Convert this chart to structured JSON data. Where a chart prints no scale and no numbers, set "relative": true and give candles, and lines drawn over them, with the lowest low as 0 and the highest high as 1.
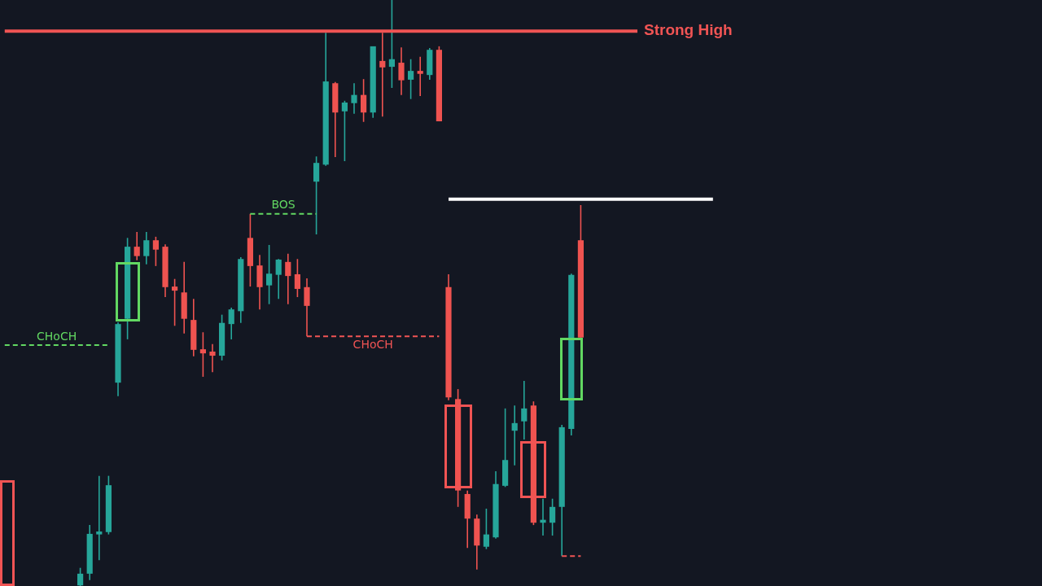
{
  "chart_data": {
    "type": "candlestick",
    "relative": true,
    "legend": false,
    "categories": [
      null,
      null,
      null,
      null,
      null,
      null,
      null,
      null,
      null,
      null,
      null,
      null,
      null,
      null,
      null,
      null,
      null,
      null,
      null,
      null,
      null,
      null,
      null,
      null,
      null,
      null,
      null,
      null,
      null,
      null,
      null,
      null,
      null,
      null,
      null,
      null,
      null,
      null,
      null,
      null,
      null,
      null,
      null,
      null,
      null,
      null,
      null,
      null,
      null,
      null,
      null,
      null,
      null,
      null,
      null,
      null,
      null,
      null,
      null,
      null,
      null,
      null,
      null,
      null,
      null,
      null,
      null,
      null,
      null,
      null,
      null,
      null,
      null,
      null,
      null,
      null,
      null,
      null,
      null,
      null
    ],
    "ohlc": [
      null,
      null,
      null,
      null,
      null,
      null,
      null,
      null,
      [
        0.001,
        0.031,
        0,
        0.021
      ],
      [
        0.021,
        0.104,
        0.01,
        0.089
      ],
      [
        0.088,
        0.188,
        0.044,
        0.093
      ],
      [
        0.092,
        0.188,
        0.088,
        0.172
      ],
      [
        0.347,
        0.45,
        0.324,
        0.447
      ],
      [
        0.456,
        0.594,
        0.421,
        0.579
      ],
      [
        0.579,
        0.604,
        0.556,
        0.563
      ],
      [
        0.563,
        0.604,
        0.549,
        0.59
      ],
      [
        0.59,
        0.596,
        0.546,
        0.574
      ],
      [
        0.579,
        0.583,
        0.493,
        0.51
      ],
      [
        0.511,
        0.524,
        0.444,
        0.504
      ],
      [
        0.501,
        0.553,
        0.431,
        0.456
      ],
      [
        0.454,
        0.49,
        0.392,
        0.403
      ],
      [
        0.404,
        0.433,
        0.357,
        0.397
      ],
      [
        0.4,
        0.413,
        0.365,
        0.393
      ],
      [
        0.393,
        0.463,
        0.385,
        0.449
      ],
      [
        0.447,
        0.475,
        0.421,
        0.472
      ],
      [
        0.469,
        0.561,
        0.449,
        0.558
      ],
      [
        0.594,
        0.635,
        0.511,
        0.546
      ],
      [
        0.547,
        0.565,
        0.472,
        0.51
      ],
      [
        0.513,
        0.582,
        0.481,
        0.533
      ],
      [
        0.531,
        0.558,
        0.49,
        0.557
      ],
      [
        0.553,
        0.567,
        0.481,
        0.529
      ],
      [
        0.532,
        0.558,
        0.493,
        0.507
      ],
      [
        0.51,
        0.525,
        0.426,
        0.478
      ],
      [
        0.69,
        0.733,
        0.6,
        0.722
      ],
      [
        0.719,
        0.944,
        0.717,
        0.861
      ],
      [
        0.858,
        0.86,
        0.732,
        0.808
      ],
      [
        0.81,
        0.828,
        0.725,
        0.825
      ],
      [
        0.824,
        0.858,
        0.806,
        0.838
      ],
      [
        0.838,
        0.865,
        0.792,
        0.808
      ],
      [
        0.808,
        0.921,
        0.799,
        0.921
      ],
      [
        0.896,
        0.944,
        0.801,
        0.885
      ],
      [
        0.886,
        1,
        0.85,
        0.899
      ],
      [
        0.893,
        0.919,
        0.838,
        0.863
      ],
      [
        0.864,
        0.899,
        0.831,
        0.879
      ],
      [
        0.879,
        0.903,
        0.836,
        0.874
      ],
      [
        0.872,
        0.918,
        0.864,
        0.915
      ],
      [
        0.915,
        0.921,
        0.793,
        0.793
      ],
      [
        0.51,
        0.532,
        0.317,
        0.322
      ],
      [
        0.319,
        0.336,
        0.135,
        0.163
      ],
      [
        0.157,
        0.163,
        0.065,
        0.115
      ],
      [
        0.115,
        0.122,
        0.028,
        0.069
      ],
      [
        0.067,
        0.132,
        0.063,
        0.088
      ],
      [
        0.083,
        0.196,
        0.081,
        0.174
      ],
      [
        0.171,
        0.303,
        0.169,
        0.215
      ],
      [
        0.265,
        0.308,
        0.206,
        0.278
      ],
      [
        0.281,
        0.35,
        0.25,
        0.303
      ],
      [
        0.308,
        0.315,
        0.104,
        0.108
      ],
      [
        0.108,
        0.149,
        0.086,
        0.113
      ],
      [
        0.108,
        0.149,
        0.086,
        0.135
      ],
      [
        0.135,
        0.275,
        0.051,
        0.271
      ],
      [
        0.268,
        0.533,
        0.257,
        0.531
      ],
      [
        0.59,
        0.65,
        0.424,
        0.424
      ],
      null,
      null,
      null,
      null,
      null,
      null,
      null,
      null,
      null,
      null,
      null,
      null,
      null,
      null,
      null,
      null,
      null,
      null
    ],
    "colors": [
      null,
      null,
      null,
      null,
      null,
      null,
      null,
      null,
      "#26a69a",
      "#26a69a",
      "#26a69a",
      "#26a69a",
      "#26a69a",
      "#26a69a",
      "#ef5350",
      "#26a69a",
      "#ef5350",
      "#ef5350",
      "#ef5350",
      "#ef5350",
      "#ef5350",
      "#ef5350",
      "#ef5350",
      "#26a69a",
      "#26a69a",
      "#26a69a",
      "#ef5350",
      "#ef5350",
      "#26a69a",
      "#26a69a",
      "#ef5350",
      "#ef5350",
      "#ef5350",
      "#26a69a",
      "#26a69a",
      "#ef5350",
      "#26a69a",
      "#26a69a",
      "#ef5350",
      "#26a69a",
      "#ef5350",
      "#26a69a",
      "#ef5350",
      "#26a69a",
      "#ef5350",
      "#26a69a",
      "#ef5350",
      "#ef5350",
      "#ef5350",
      "#ef5350",
      "#ef5350",
      "#26a69a",
      "#26a69a",
      "#26a69a",
      "#26a69a",
      "#26a69a",
      "#ef5350",
      "#26a69a",
      "#26a69a",
      "#26a69a",
      "#26a69a",
      "#ef5350",
      null,
      null,
      null,
      null,
      null,
      null,
      null,
      null,
      null,
      null,
      null,
      null,
      null,
      null,
      null,
      null,
      null,
      null
    ],
    "series": [
      {
        "type": "line",
        "name": "Strong High",
        "color": "#f05454",
        "line_style": "solid",
        "values": [
          0.947,
          null,
          null,
          null,
          null,
          null,
          null,
          null,
          null,
          null,
          null,
          null,
          null,
          null,
          null,
          null,
          null,
          null,
          null,
          null,
          null,
          null,
          null,
          null,
          null,
          null,
          null,
          null,
          null,
          null,
          null,
          null,
          null,
          null,
          null,
          null,
          null,
          null,
          null,
          null,
          null,
          null,
          null,
          null,
          null,
          null,
          null,
          null,
          null,
          null,
          null,
          null,
          null,
          null,
          null,
          null,
          null,
          null,
          null,
          null,
          null,
          null,
          null,
          null,
          null,
          null,
          null,
          0.947,
          null,
          null,
          null,
          null,
          null,
          null,
          null,
          null,
          null,
          null,
          null,
          null
        ]
      },
      {
        "type": "line",
        "color": "#ffffff",
        "line_style": "solid",
        "values": [
          null,
          null,
          null,
          null,
          null,
          null,
          null,
          null,
          null,
          null,
          null,
          null,
          null,
          null,
          null,
          null,
          null,
          null,
          null,
          null,
          null,
          null,
          null,
          null,
          null,
          null,
          null,
          null,
          null,
          null,
          null,
          null,
          null,
          null,
          null,
          null,
          null,
          null,
          null,
          null,
          null,
          null,
          null,
          null,
          null,
          null,
          null,
          0.66,
          null,
          null,
          null,
          null,
          null,
          null,
          null,
          null,
          null,
          null,
          null,
          null,
          null,
          null,
          null,
          null,
          null,
          null,
          null,
          null,
          null,
          null,
          null,
          null,
          null,
          null,
          null,
          0.66,
          null,
          null,
          null,
          null
        ]
      },
      {
        "type": "line",
        "name": "CHoCH",
        "color": "#62d862",
        "line_style": "dashed",
        "values": [
          0.411,
          null,
          null,
          null,
          null,
          null,
          null,
          null,
          null,
          null,
          null,
          0.411,
          null,
          null,
          null,
          null,
          null,
          null,
          null,
          null,
          null,
          null,
          null,
          null,
          null,
          null,
          null,
          null,
          null,
          null,
          null,
          null,
          null,
          null,
          null,
          null,
          null,
          null,
          null,
          null,
          null,
          null,
          null,
          null,
          null,
          null,
          null,
          null,
          null,
          null,
          null,
          null,
          null,
          null,
          null,
          null,
          null,
          null,
          null,
          null,
          null,
          null,
          null,
          null,
          null,
          null,
          null,
          null,
          null,
          null,
          null,
          null,
          null,
          null,
          null,
          null,
          null,
          null,
          null,
          null
        ]
      },
      {
        "type": "line",
        "name": "BOS",
        "color": "#62d862",
        "line_style": "dashed",
        "values": [
          null,
          null,
          null,
          null,
          null,
          null,
          null,
          null,
          null,
          null,
          null,
          null,
          null,
          null,
          null,
          null,
          null,
          null,
          null,
          null,
          null,
          null,
          null,
          null,
          null,
          null,
          0.635,
          null,
          null,
          null,
          null,
          null,
          null,
          0.635,
          null,
          null,
          null,
          null,
          null,
          null,
          null,
          null,
          null,
          null,
          null,
          null,
          null,
          null,
          null,
          null,
          null,
          null,
          null,
          null,
          null,
          null,
          null,
          null,
          null,
          null,
          null,
          null,
          null,
          null,
          null,
          null,
          null,
          null,
          null,
          null,
          null,
          null,
          null,
          null,
          null,
          null,
          null,
          null,
          null,
          null
        ]
      },
      {
        "type": "line",
        "name": "CHoCH",
        "color": "#f05454",
        "line_style": "dashed",
        "values": [
          null,
          null,
          null,
          null,
          null,
          null,
          null,
          null,
          null,
          null,
          null,
          null,
          null,
          null,
          null,
          null,
          null,
          null,
          null,
          null,
          null,
          null,
          null,
          null,
          null,
          null,
          null,
          null,
          null,
          null,
          null,
          null,
          0.426,
          null,
          null,
          null,
          null,
          null,
          null,
          null,
          null,
          null,
          null,
          null,
          null,
          null,
          0.426,
          null,
          null,
          null,
          null,
          null,
          null,
          null,
          null,
          null,
          null,
          null,
          null,
          null,
          null,
          null,
          null,
          null,
          null,
          null,
          null,
          null,
          null,
          null,
          null,
          null,
          null,
          null,
          null,
          null,
          null,
          null,
          null,
          null
        ]
      },
      {
        "type": "line",
        "color": "#f05454",
        "line_style": "dashed",
        "values": [
          null,
          null,
          null,
          null,
          null,
          null,
          null,
          null,
          null,
          null,
          null,
          null,
          null,
          null,
          null,
          null,
          null,
          null,
          null,
          null,
          null,
          null,
          null,
          null,
          null,
          null,
          null,
          null,
          null,
          null,
          null,
          null,
          null,
          null,
          null,
          null,
          null,
          null,
          null,
          null,
          null,
          null,
          null,
          null,
          null,
          null,
          null,
          null,
          null,
          null,
          null,
          null,
          null,
          null,
          null,
          null,
          null,
          null,
          null,
          0.051,
          null,
          0.051,
          null,
          null,
          null,
          null,
          null,
          null,
          null,
          null,
          null,
          null,
          null,
          null,
          null,
          null,
          null,
          null,
          null,
          null
        ]
      }
    ]
  }
}
